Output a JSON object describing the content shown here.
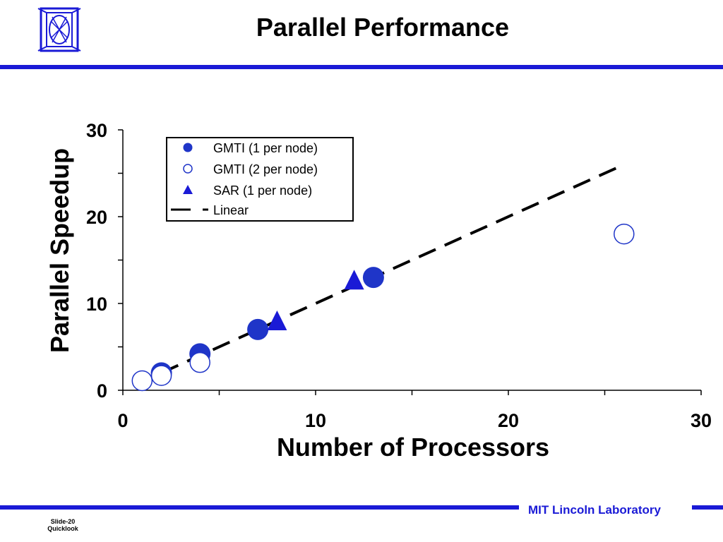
{
  "header": {
    "title": "Parallel Performance"
  },
  "footer": {
    "lab": "MIT Lincoln Laboratory",
    "slide_number": "Slide-20",
    "slide_subtitle": "Quicklook"
  },
  "colors": {
    "accent": "#1a1ad6",
    "marker_fill": "#1f35c8",
    "line": "#000000"
  },
  "chart_data": {
    "type": "scatter",
    "xlabel": "Number of Processors",
    "ylabel": "Parallel Speedup",
    "xlim": [
      0,
      30
    ],
    "ylim": [
      0,
      30
    ],
    "xticks": [
      0,
      10,
      20,
      30
    ],
    "yticks": [
      0,
      10,
      20,
      30
    ],
    "grid": false,
    "legend_position": "top-left",
    "series": [
      {
        "name": "GMTI (1 per node)",
        "marker": "filled-circle",
        "x": [
          2,
          4,
          7,
          13
        ],
        "y": [
          2,
          4.2,
          7,
          13
        ]
      },
      {
        "name": "GMTI (2 per node)",
        "marker": "open-circle",
        "x": [
          1,
          2,
          4,
          26
        ],
        "y": [
          1.1,
          1.7,
          3.2,
          18
        ]
      },
      {
        "name": "SAR (1 per node)",
        "marker": "filled-triangle",
        "x": [
          8,
          12
        ],
        "y": [
          7.8,
          12.5
        ]
      },
      {
        "name": "Linear",
        "marker": "dashed-line",
        "x": [
          2,
          26
        ],
        "y": [
          2,
          26
        ]
      }
    ]
  }
}
